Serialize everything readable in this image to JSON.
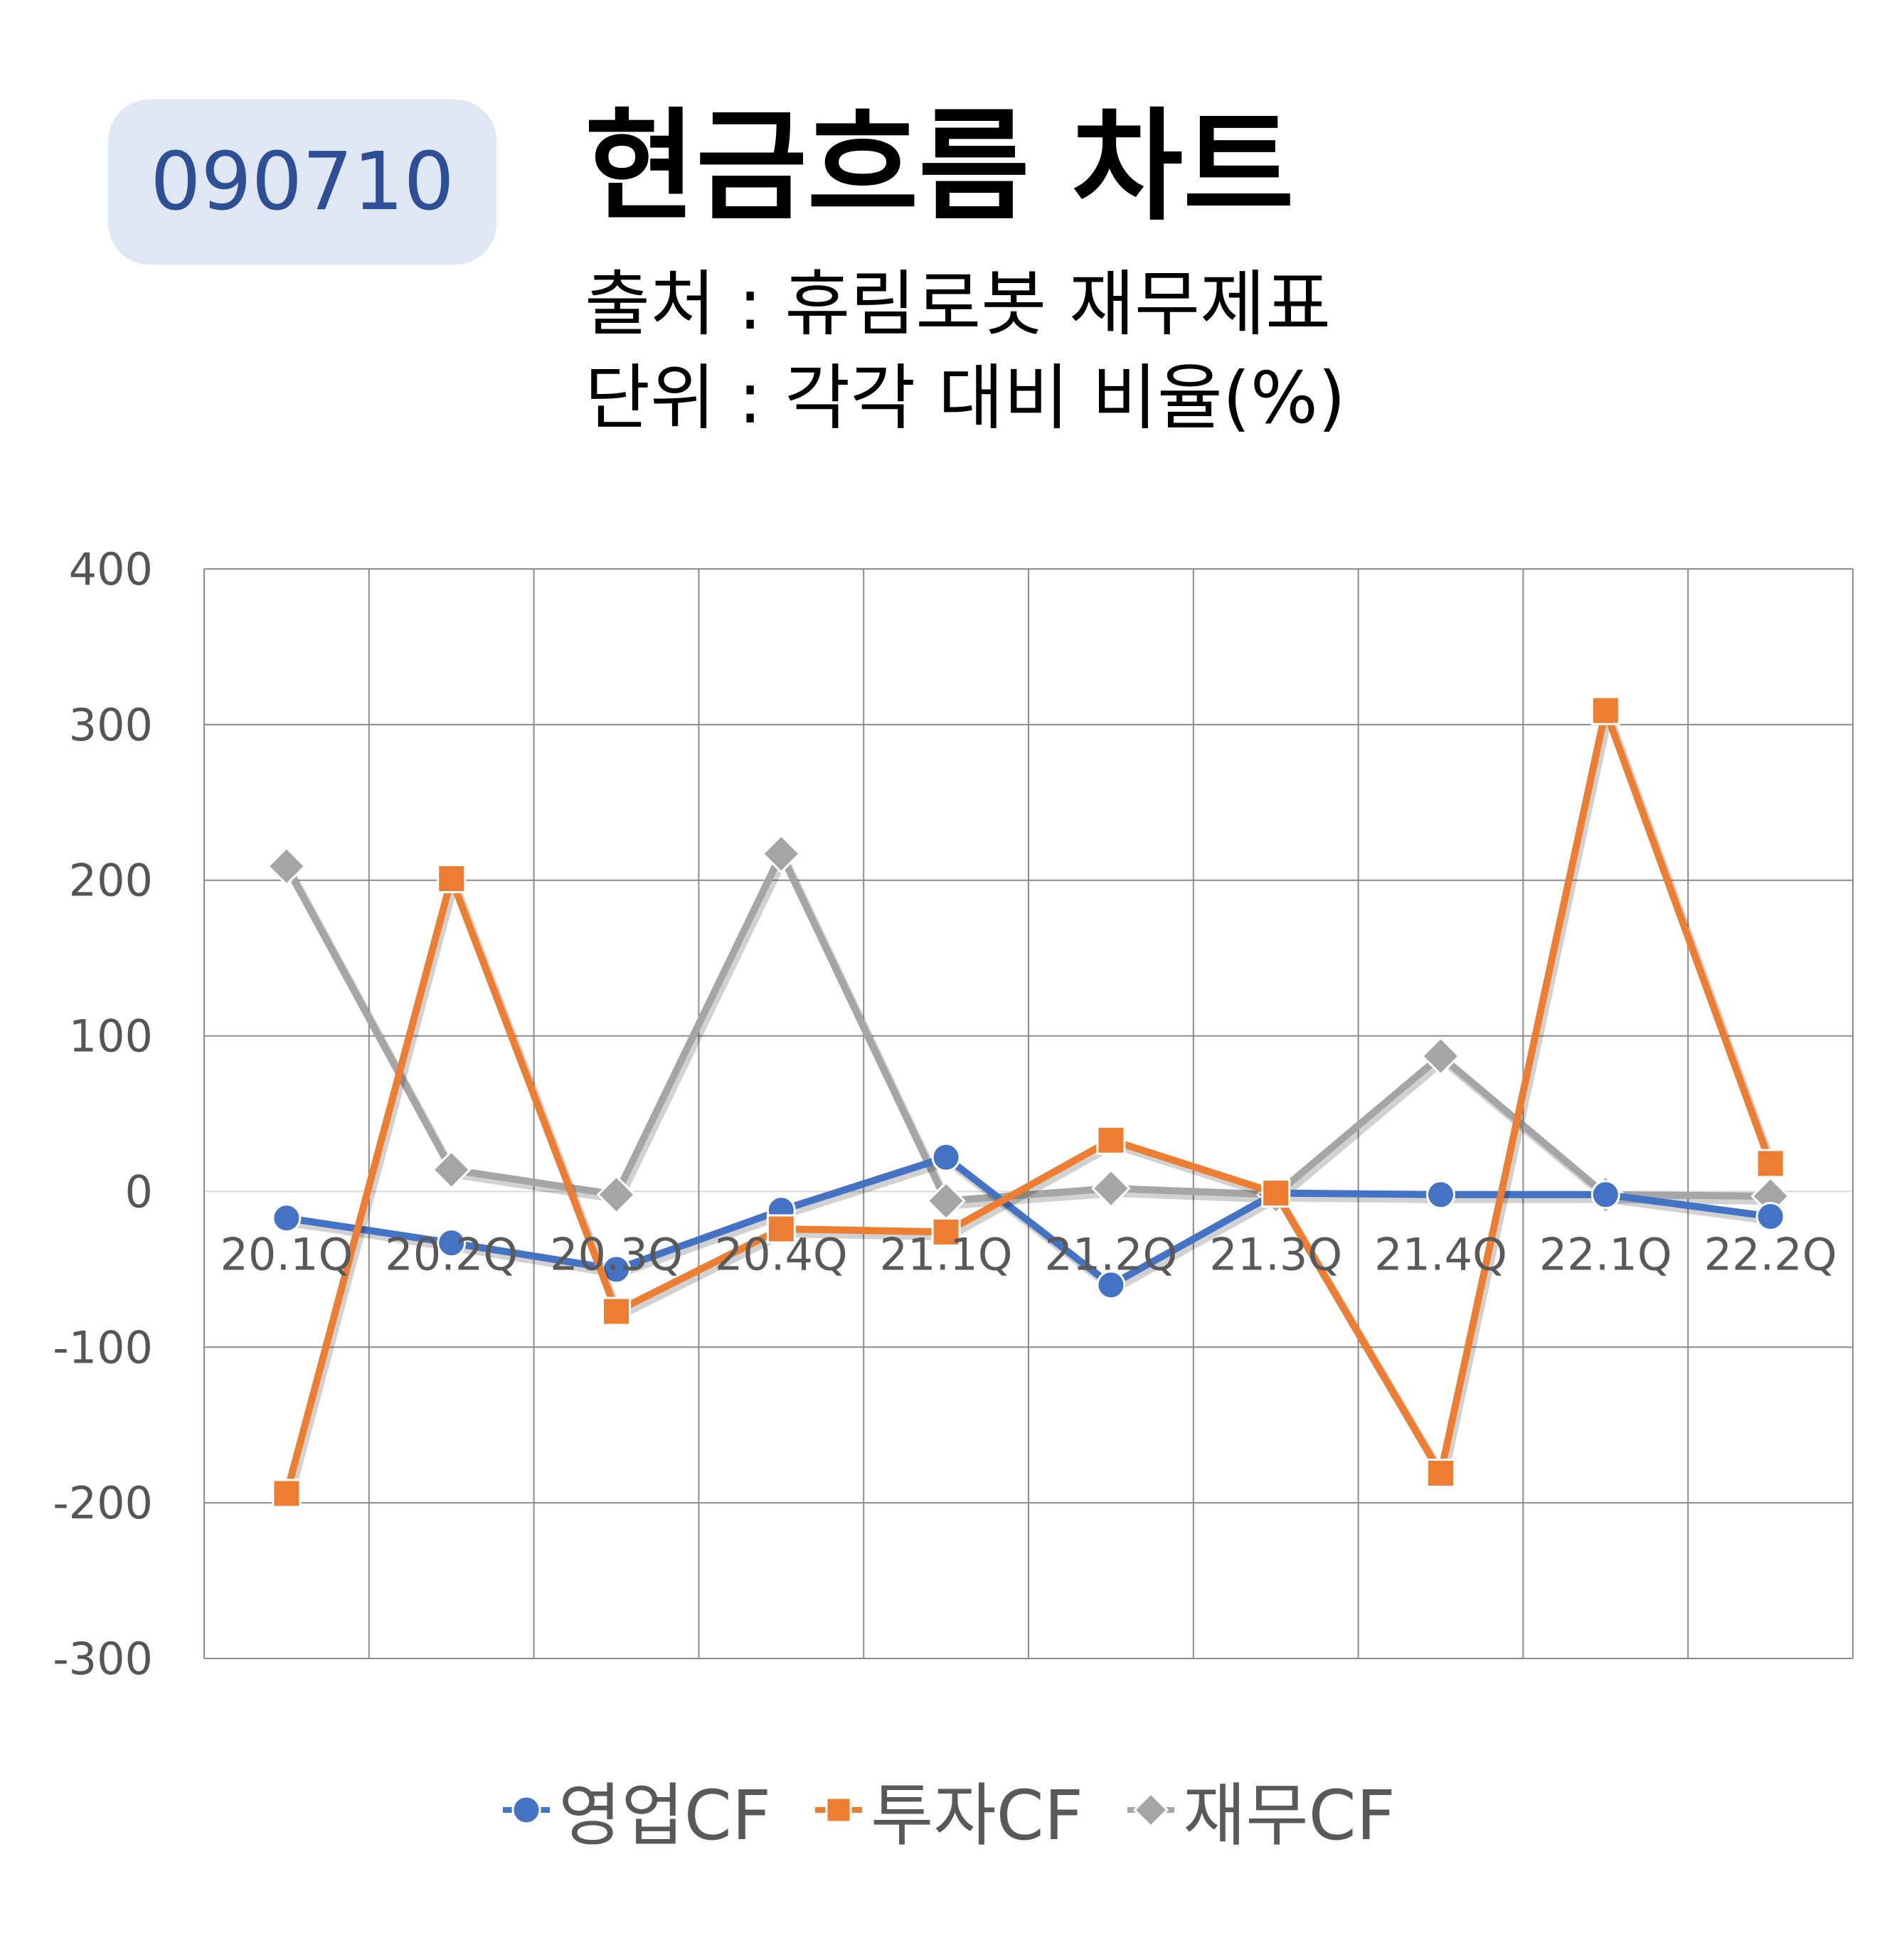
{
  "header": {
    "code": "090710",
    "title": "현금흐름 차트",
    "source": "출처 : 휴림로봇 재무제표",
    "unit": "단위 : 각각 대비 비율(%)"
  },
  "colors": {
    "operating": "#4472c4",
    "investing": "#ed7d31",
    "financing": "#a5a5a5",
    "badge_bg": "#dfe6f4",
    "badge_text": "#2e4f96"
  },
  "chart_data": {
    "type": "line",
    "categories": [
      "20.1Q",
      "20.2Q",
      "20.3Q",
      "20.4Q",
      "21.1Q",
      "21.2Q",
      "21.3Q",
      "21.4Q",
      "22.1Q",
      "22.2Q"
    ],
    "series": [
      {
        "name": "영업CF",
        "marker": "circle",
        "color": "#4472c4",
        "values": [
          -17,
          -33,
          -50,
          -12,
          22,
          -60,
          -1,
          -2,
          -2,
          -16
        ]
      },
      {
        "name": "투자CF",
        "marker": "square",
        "color": "#ed7d31",
        "values": [
          -194,
          201,
          -77,
          -24,
          -26,
          33,
          -1,
          -181,
          309,
          18
        ]
      },
      {
        "name": "재무CF",
        "marker": "diamond",
        "color": "#a5a5a5",
        "values": [
          209,
          14,
          -2,
          217,
          -6,
          2,
          -2,
          87,
          -2,
          -3
        ]
      }
    ],
    "yticks": [
      "400",
      "300",
      "200",
      "100",
      "0",
      "-100",
      "-200",
      "-300"
    ],
    "ylim": [
      -300,
      400
    ],
    "grid": true,
    "legend": "bottom"
  }
}
